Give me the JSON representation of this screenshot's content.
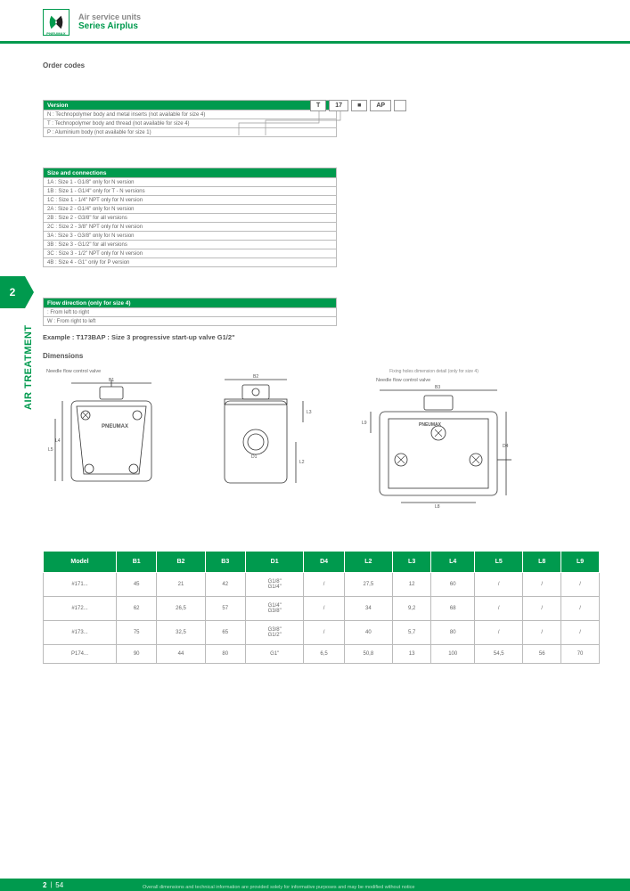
{
  "header": {
    "logoText": "PNEUMAX",
    "line1": "Air service units",
    "line2": "Series Airplus"
  },
  "sideTab": {
    "num": "2",
    "label": "AIR TREATMENT"
  },
  "orderCodes": {
    "title": "Order codes",
    "code": [
      "T",
      "17",
      "■",
      "AP",
      ""
    ],
    "tables": [
      {
        "header": "Version",
        "rows": [
          "N : Technopolymer body and metal inserts (not available for size 4)",
          "T : Technopolymer body and thread (not available for size 4)",
          "P : Aluminium body (not available for size 1)"
        ]
      },
      {
        "header": "Size and connections",
        "rows": [
          "1A : Size 1 - G1/8\" only for N version",
          "1B : Size 1 - G1/4\" only for T - N versions",
          "1C : Size 1 - 1/4\" NPT only for N version",
          "2A : Size 2 - G1/4\" only for N version",
          "2B : Size 2 - G3/8\" for all versions",
          "2C : Size 2 - 3/8\" NPT only for N version",
          "3A : Size 3 - G3/8\" only for N version",
          "3B : Size 3 - G1/2\" for all versions",
          "3C : Size 3 - 1/2\" NPT only for N version",
          "4B : Size 4 - G1\" only for P version"
        ]
      },
      {
        "header": "Flow direction (only for size 4)",
        "rows": [
          "  : From left to right",
          "W : From right to left"
        ]
      }
    ],
    "example": "Example : T173BAP : Size 3 progressive start-up valve G1/2\""
  },
  "dimensions": {
    "title": "Dimensions",
    "labels": {
      "needle": "Needle flow\ncontrol valve",
      "fixing": "Fixing holes dimension detail\n(only for size 4)"
    }
  },
  "dimTable": {
    "columns": [
      "Model",
      "B1",
      "B2",
      "B3",
      "D1",
      "D4",
      "L2",
      "L3",
      "L4",
      "L5",
      "L8",
      "L9"
    ],
    "rows": [
      [
        "#171...",
        "45",
        "21",
        "42",
        "G1/8\"\nG1/4\"",
        "/",
        "27,5",
        "12",
        "60",
        "/",
        "/",
        "/"
      ],
      [
        "#172...",
        "62",
        "26,5",
        "57",
        "G1/4\"\nG3/8\"",
        "/",
        "34",
        "9,2",
        "68",
        "/",
        "/",
        "/"
      ],
      [
        "#173...",
        "75",
        "32,5",
        "65",
        "G3/8\"\nG1/2\"",
        "/",
        "40",
        "5,7",
        "80",
        "/",
        "/",
        "/"
      ],
      [
        "P174...",
        "90",
        "44",
        "80",
        "G1\"",
        "6,5",
        "50,8",
        "13",
        "100",
        "54,5",
        "56",
        "70"
      ]
    ]
  },
  "footer": {
    "chapter": "2",
    "page": "54",
    "note": "Overall dimensions and technical information are provided solely for informative purposes and may be modified without notice"
  }
}
